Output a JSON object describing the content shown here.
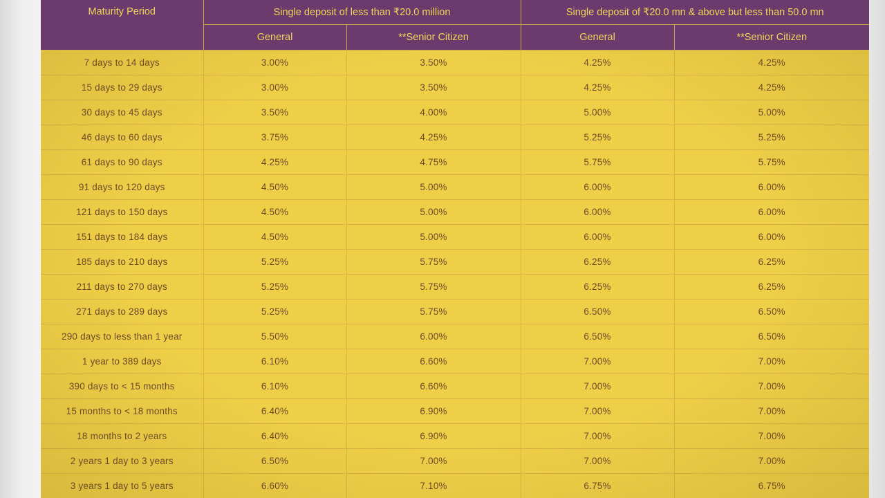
{
  "table": {
    "header": {
      "maturity_label": "Maturity Period",
      "group_1_label": "Single deposit of less than ₹20.0 million",
      "group_2_label": "Single deposit of ₹20.0 mn & above but less than 50.0 mn",
      "sub_labels": [
        "General",
        "**Senior Citizen",
        "General",
        "**Senior Citizen"
      ]
    },
    "rows": [
      [
        "7 days to 14 days",
        "3.00%",
        "3.50%",
        "4.25%",
        "4.25%"
      ],
      [
        "15 days to 29 days",
        "3.00%",
        "3.50%",
        "4.25%",
        "4.25%"
      ],
      [
        "30 days to 45 days",
        "3.50%",
        "4.00%",
        "5.00%",
        "5.00%"
      ],
      [
        "46 days to 60 days",
        "3.75%",
        "4.25%",
        "5.25%",
        "5.25%"
      ],
      [
        "61 days to 90 days",
        "4.25%",
        "4.75%",
        "5.75%",
        "5.75%"
      ],
      [
        "91 days to 120 days",
        "4.50%",
        "5.00%",
        "6.00%",
        "6.00%"
      ],
      [
        "121 days to 150 days",
        "4.50%",
        "5.00%",
        "6.00%",
        "6.00%"
      ],
      [
        "151 days to 184 days",
        "4.50%",
        "5.00%",
        "6.00%",
        "6.00%"
      ],
      [
        "185 days to 210 days",
        "5.25%",
        "5.75%",
        "6.25%",
        "6.25%"
      ],
      [
        "211 days to 270 days",
        "5.25%",
        "5.75%",
        "6.25%",
        "6.25%"
      ],
      [
        "271 days to 289 days",
        "5.25%",
        "5.75%",
        "6.50%",
        "6.50%"
      ],
      [
        "290 days to less than 1 year",
        "5.50%",
        "6.00%",
        "6.50%",
        "6.50%"
      ],
      [
        "1 year to 389 days",
        "6.10%",
        "6.60%",
        "7.00%",
        "7.00%"
      ],
      [
        "390 days to < 15 months",
        "6.10%",
        "6.60%",
        "7.00%",
        "7.00%"
      ],
      [
        "15 months to < 18 months",
        "6.40%",
        "6.90%",
        "7.00%",
        "7.00%"
      ],
      [
        "18 months to 2 years",
        "6.40%",
        "6.90%",
        "7.00%",
        "7.00%"
      ],
      [
        "2 years 1 day to 3 years",
        "6.50%",
        "7.00%",
        "7.00%",
        "7.00%"
      ],
      [
        "3 years 1 day to 5 years",
        "6.60%",
        "7.10%",
        "6.75%",
        "6.75%"
      ]
    ]
  },
  "colors": {
    "header_bg": "#6b3b6e",
    "header_text": "#f2d65a",
    "body_bg": "#efcf48",
    "body_text": "#6a4a2a"
  }
}
